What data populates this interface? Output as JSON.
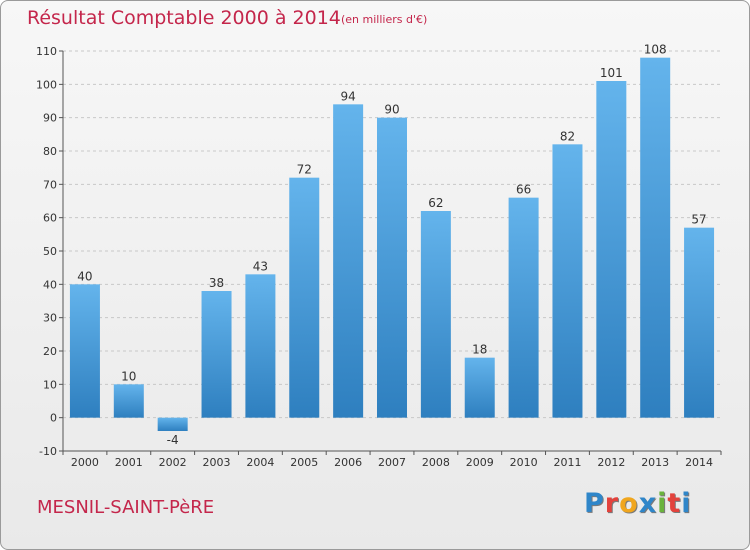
{
  "title": "Résultat Comptable 2000 à 2014",
  "subtitle": "(en milliers d'€)",
  "commune": "MESNIL-SAINT-PèRE",
  "logo": {
    "letters": [
      "P",
      "r",
      "o",
      "x",
      "i",
      "t",
      "i"
    ],
    "colors": [
      "#2f86c9",
      "#e3423c",
      "#f0a61e",
      "#2f86c9",
      "#6ab33d",
      "#e3423c",
      "#2f86c9"
    ]
  },
  "colors": {
    "bar_light": "#64b4ec",
    "bar_dark": "#2e7fbf",
    "text": "#333333",
    "accent": "#c4264b"
  },
  "chart_data": {
    "type": "bar",
    "categories": [
      "2000",
      "2001",
      "2002",
      "2003",
      "2004",
      "2005",
      "2006",
      "2007",
      "2008",
      "2009",
      "2010",
      "2011",
      "2012",
      "2013",
      "2014"
    ],
    "values": [
      40,
      10,
      -4,
      38,
      43,
      72,
      94,
      90,
      62,
      18,
      66,
      82,
      101,
      108,
      57
    ],
    "ylim": [
      -10,
      110
    ],
    "yticks": [
      -10,
      0,
      10,
      20,
      30,
      40,
      50,
      60,
      70,
      80,
      90,
      100,
      110
    ],
    "grid": "horizontal dashed",
    "legend": "none",
    "data_labels": true
  }
}
